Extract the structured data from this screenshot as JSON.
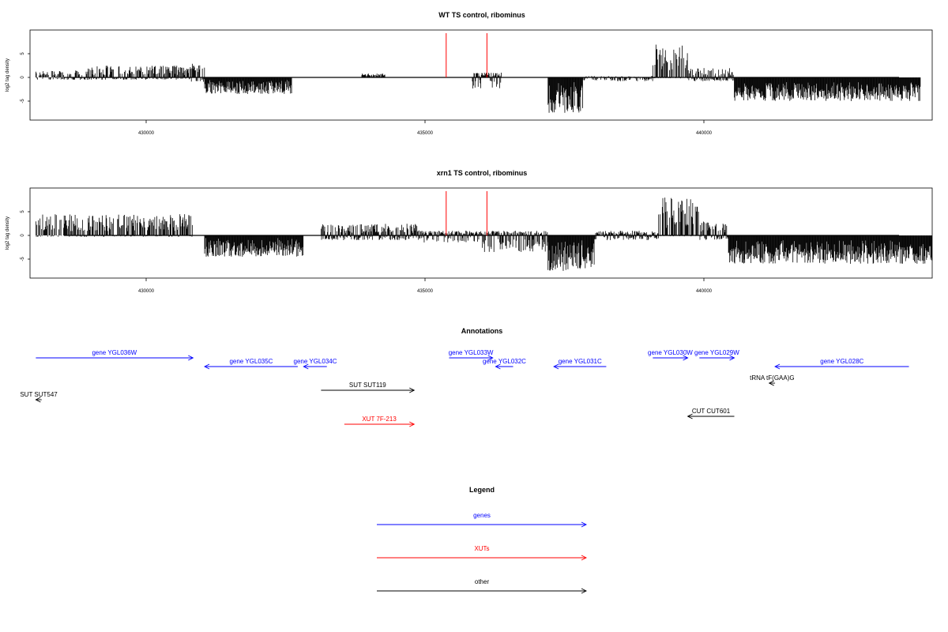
{
  "colors": {
    "genes": "#0000ff",
    "xuts": "#ff0000",
    "other": "#000000",
    "highlight": "#ff0000"
  },
  "chart_data": [
    {
      "type": "bar",
      "title": "WT TS control, ribominus",
      "ylabel": "log2 tag density",
      "xlim": [
        428500,
        444000
      ],
      "ylim": [
        -9,
        10
      ],
      "xticks": [
        430000,
        435000,
        440000
      ],
      "xtick_labels": [
        "430000",
        "435000",
        "440000"
      ],
      "yticks": [
        -5,
        0,
        5
      ],
      "ytick_labels": [
        "-5",
        "0",
        "5"
      ],
      "grid": false,
      "highlight_x": [
        435650,
        436350
      ],
      "series": [
        {
          "x": [
            428600,
            429500
          ],
          "values": [
            1.5,
            -0.5
          ]
        },
        {
          "x": [
            429500,
            431200
          ],
          "values": [
            2.5,
            -0.5
          ]
        },
        {
          "x": [
            431200,
            431500
          ],
          "values": [
            3.0,
            -1.0
          ]
        },
        {
          "x": [
            431500,
            433000
          ],
          "values": [
            -0.5,
            -3.5
          ]
        },
        {
          "x": [
            434200,
            434600
          ],
          "values": [
            0.8,
            0
          ]
        },
        {
          "x": [
            436100,
            436600
          ],
          "values": [
            1.0,
            -2.5
          ]
        },
        {
          "x": [
            437400,
            438000
          ],
          "values": [
            -1.0,
            -7.5
          ]
        },
        {
          "x": [
            438000,
            439200
          ],
          "values": [
            0.3,
            -0.8
          ]
        },
        {
          "x": [
            439200,
            439800
          ],
          "values": [
            7.0,
            -0.2
          ]
        },
        {
          "x": [
            439800,
            440600
          ],
          "values": [
            2.0,
            -0.8
          ]
        },
        {
          "x": [
            440600,
            443800
          ],
          "values": [
            -1.0,
            -5.0
          ]
        }
      ]
    },
    {
      "type": "bar",
      "title": "xrn1 TS control, ribominus",
      "ylabel": "log2 tag density",
      "xlim": [
        428500,
        444000
      ],
      "ylim": [
        -9,
        10
      ],
      "xticks": [
        430000,
        435000,
        440000
      ],
      "xtick_labels": [
        "430000",
        "435000",
        "440000"
      ],
      "yticks": [
        -5,
        0,
        5
      ],
      "ytick_labels": [
        "-5",
        "0",
        "5"
      ],
      "grid": false,
      "highlight_x": [
        435650,
        436350
      ],
      "series": [
        {
          "x": [
            428600,
            431300
          ],
          "values": [
            4.5,
            -0.3
          ]
        },
        {
          "x": [
            431500,
            433200
          ],
          "values": [
            -0.5,
            -4.5
          ]
        },
        {
          "x": [
            433500,
            435200
          ],
          "values": [
            2.5,
            -1.0
          ]
        },
        {
          "x": [
            435200,
            436200
          ],
          "values": [
            1.0,
            -1.5
          ]
        },
        {
          "x": [
            436200,
            437400
          ],
          "values": [
            1.0,
            -3.5
          ]
        },
        {
          "x": [
            437400,
            438200
          ],
          "values": [
            -1.0,
            -7.5
          ]
        },
        {
          "x": [
            438200,
            439300
          ],
          "values": [
            1.0,
            -1.0
          ]
        },
        {
          "x": [
            439300,
            440000
          ],
          "values": [
            8.0,
            -0.2
          ]
        },
        {
          "x": [
            440000,
            440500
          ],
          "values": [
            3.0,
            -1.0
          ]
        },
        {
          "x": [
            440500,
            444000
          ],
          "values": [
            -1.0,
            -6.0
          ]
        }
      ]
    }
  ],
  "annotations": {
    "title": "Annotations",
    "items": [
      {
        "label": "gene YGL036W",
        "category": "genes",
        "start": 428600,
        "end": 431300,
        "row": 0
      },
      {
        "label": "gene YGL035C",
        "category": "genes",
        "start": 433100,
        "end": 431500,
        "row": 1
      },
      {
        "label": "gene YGL034C",
        "category": "genes",
        "start": 433600,
        "end": 433200,
        "row": 1
      },
      {
        "label": "gene YGL033W",
        "category": "genes",
        "start": 435700,
        "end": 436450,
        "row": 0
      },
      {
        "label": "gene YGL032C",
        "category": "genes",
        "start": 436800,
        "end": 436500,
        "row": 1
      },
      {
        "label": "gene YGL031C",
        "category": "genes",
        "start": 438400,
        "end": 437500,
        "row": 1
      },
      {
        "label": "gene YGL030W",
        "category": "genes",
        "start": 439200,
        "end": 439800,
        "row": 0
      },
      {
        "label": "gene YGL029W",
        "category": "genes",
        "start": 440000,
        "end": 440600,
        "row": 0
      },
      {
        "label": "gene YGL028C",
        "category": "genes",
        "start": 443600,
        "end": 441300,
        "row": 1
      },
      {
        "label": "tRNA tF(GAA)G",
        "category": "other",
        "start": 441300,
        "end": 441200,
        "row": 2
      },
      {
        "label": "SUT SUT547",
        "category": "other",
        "start": 428700,
        "end": 428600,
        "row": 3
      },
      {
        "label": "SUT SUT119",
        "category": "other",
        "start": 433500,
        "end": 435100,
        "row": 4
      },
      {
        "label": "CUT CUT601",
        "category": "other",
        "start": 440600,
        "end": 439800,
        "row": 5
      },
      {
        "label": "XUT 7F-213",
        "category": "xuts",
        "start": 433900,
        "end": 435100,
        "row": 6
      }
    ]
  },
  "legend": {
    "title": "Legend",
    "items": [
      {
        "label": "genes",
        "category": "genes"
      },
      {
        "label": "XUTs",
        "category": "xuts"
      },
      {
        "label": "other",
        "category": "other"
      }
    ]
  }
}
